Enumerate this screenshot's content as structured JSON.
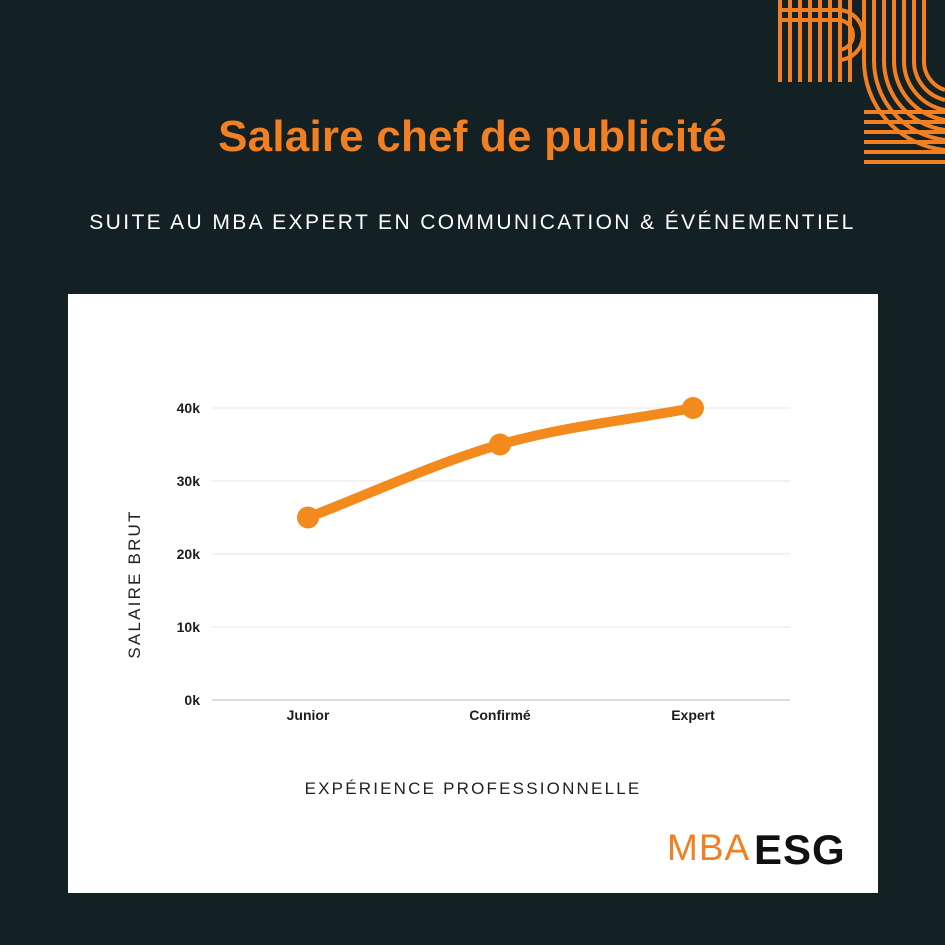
{
  "header": {
    "title": "Salaire chef de publicité",
    "subtitle": "SUITE AU MBA EXPERT EN COMMUNICATION & ÉVÉNEMENTIEL"
  },
  "chart_data": {
    "type": "line",
    "categories": [
      "Junior",
      "Confirmé",
      "Expert"
    ],
    "values": [
      25000,
      35000,
      40000
    ],
    "title": "",
    "xlabel": "EXPÉRIENCE PROFESSIONNELLE",
    "ylabel": "SALAIRE BRUT",
    "ylim": [
      0,
      40000
    ],
    "yticks": [
      0,
      10000,
      20000,
      30000,
      40000
    ],
    "ytick_labels": [
      "0k",
      "10k",
      "20k",
      "30k",
      "40k"
    ],
    "grid": true,
    "line_color": "#f28a1e"
  },
  "logo": {
    "part1": "MBA",
    "part2": "ESG"
  },
  "colors": {
    "background": "#132024",
    "accent": "#f27f22",
    "card": "#ffffff"
  }
}
